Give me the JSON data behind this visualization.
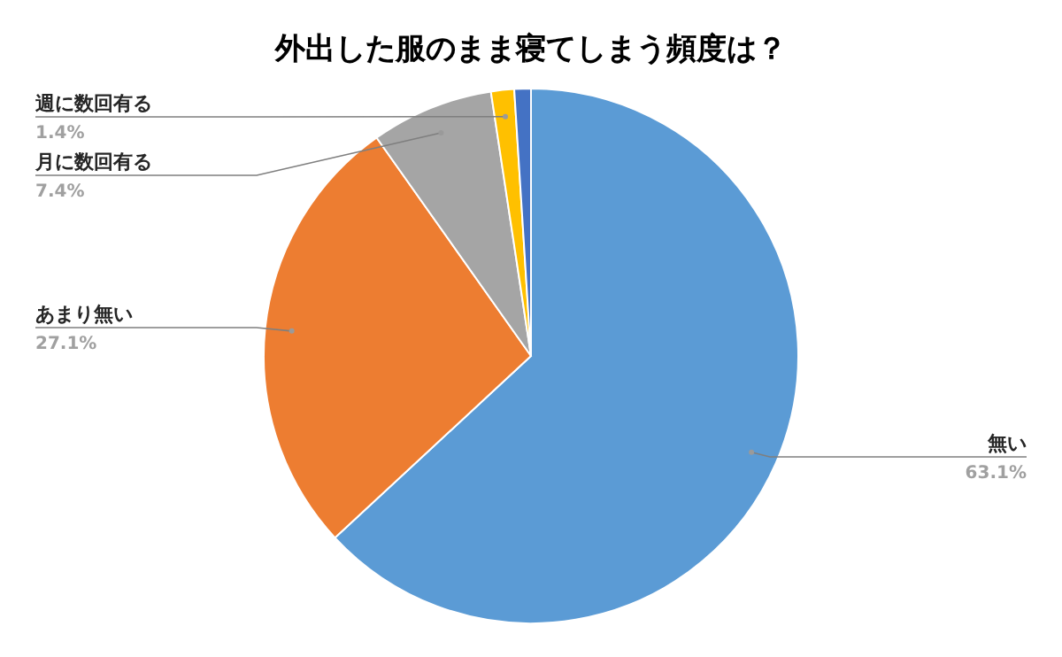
{
  "chart_data": {
    "type": "pie",
    "title": "外出した服のまま寝てしまう頻度は？",
    "categories": [
      "無い",
      "あまり無い",
      "月に数回有る",
      "週に数回有る",
      null
    ],
    "values": [
      63.1,
      27.1,
      7.4,
      1.4,
      1.0
    ],
    "value_labels": [
      "63.1%",
      "27.1%",
      "7.4%",
      "1.4%",
      null
    ],
    "colors": [
      "#5b9bd5",
      "#ed7d31",
      "#a5a5a5",
      "#ffc000",
      "#4472c4"
    ]
  }
}
